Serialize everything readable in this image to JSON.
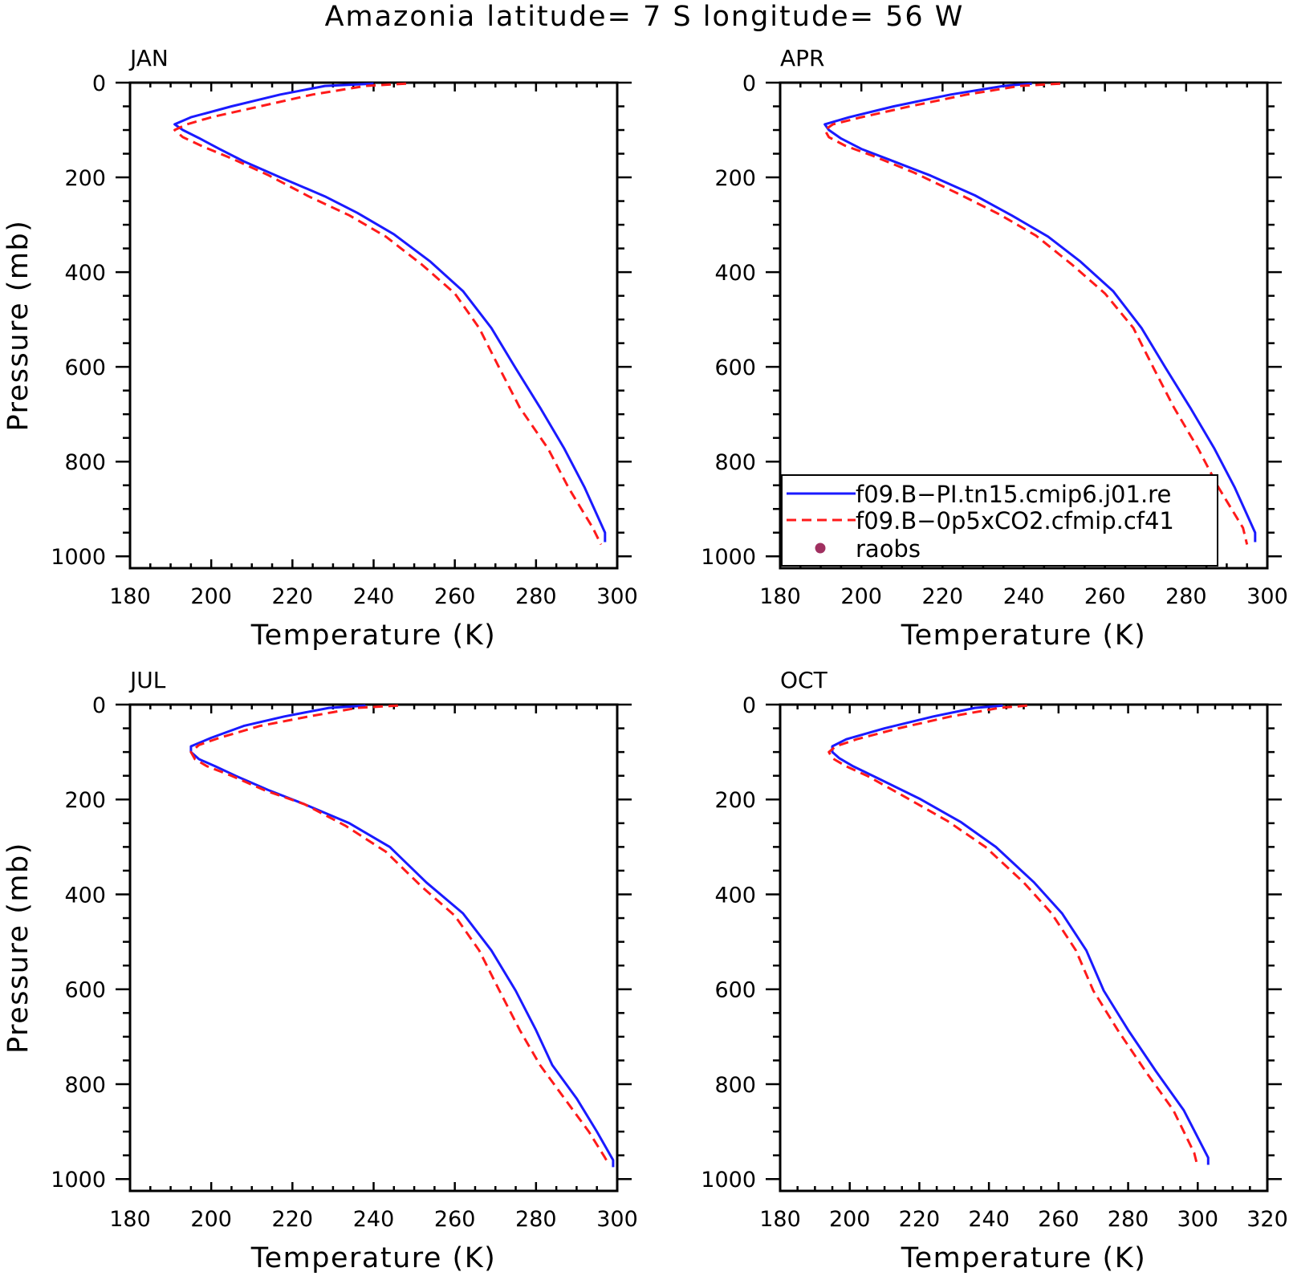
{
  "figure": {
    "title": "Amazonia  latitude= 7 S longitude= 56 W"
  },
  "colors": {
    "series_1": "#1a1aff",
    "series_2": "#ff1a1a",
    "raobs": "#a03060"
  },
  "legend": {
    "panel": "APR",
    "placement": "bottom-left",
    "entries": [
      {
        "label": "f09.B−PI.tn15.cmip6.j01.re",
        "style": "solid",
        "color": "#1a1aff"
      },
      {
        "label": "f09.B−0p5xCO2.cfmip.cf41",
        "style": "dashed",
        "color": "#ff1a1a"
      },
      {
        "label": "raobs",
        "style": "dot",
        "color": "#a03060"
      }
    ]
  },
  "chart_data": [
    {
      "type": "line",
      "title": "JAN",
      "xlabel": "Temperature (K)",
      "ylabel": "Pressure (mb)",
      "xlim": [
        180,
        300
      ],
      "ylim": [
        1025,
        0
      ],
      "xticks": [
        180,
        200,
        220,
        240,
        260,
        280,
        300
      ],
      "yticks": [
        0,
        200,
        400,
        600,
        800,
        1000
      ],
      "series": [
        {
          "name": "f09.B−PI.tn15.cmip6.j01.re",
          "style": "solid",
          "color": "#1a1aff",
          "points": [
            [
              240,
              2
            ],
            [
              228,
              7
            ],
            [
              217,
              25
            ],
            [
              205,
              50
            ],
            [
              195,
              73
            ],
            [
              191,
              88
            ],
            [
              193,
              100
            ],
            [
              197,
              117
            ],
            [
              202,
              140
            ],
            [
              208,
              166
            ],
            [
              217,
              200
            ],
            [
              228,
              240
            ],
            [
              236,
              275
            ],
            [
              245,
              320
            ],
            [
              254,
              378
            ],
            [
              262,
              440
            ],
            [
              269,
              518
            ],
            [
              275,
              603
            ],
            [
              281,
              686
            ],
            [
              287,
              773
            ],
            [
              292,
              855
            ],
            [
              297,
              950
            ],
            [
              297,
              970
            ]
          ]
        },
        {
          "name": "f09.B−0p5xCO2.cfmip.cf41",
          "style": "dashed",
          "color": "#ff1a1a",
          "points": [
            [
              248,
              2
            ],
            [
              238,
              7
            ],
            [
              225,
              25
            ],
            [
              212,
              50
            ],
            [
              200,
              73
            ],
            [
              194,
              88
            ],
            [
              191,
              100
            ],
            [
              193,
              115
            ],
            [
              198,
              135
            ],
            [
              205,
              160
            ],
            [
              214,
              195
            ],
            [
              224,
              240
            ],
            [
              234,
              280
            ],
            [
              243,
              325
            ],
            [
              252,
              385
            ],
            [
              260,
              445
            ],
            [
              266,
              518
            ],
            [
              271,
              603
            ],
            [
              276,
              686
            ],
            [
              283,
              773
            ],
            [
              288,
              855
            ],
            [
              294,
              940
            ],
            [
              296,
              975
            ]
          ]
        }
      ]
    },
    {
      "type": "line",
      "title": "APR",
      "xlabel": "Temperature (K)",
      "ylabel": "",
      "xlim": [
        180,
        300
      ],
      "ylim": [
        1025,
        0
      ],
      "xticks": [
        180,
        200,
        220,
        240,
        260,
        280,
        300
      ],
      "yticks": [
        0,
        200,
        400,
        600,
        800,
        1000
      ],
      "series": [
        {
          "name": "f09.B−PI.tn15.cmip6.j01.re",
          "style": "solid",
          "color": "#1a1aff",
          "points": [
            [
              242,
              2
            ],
            [
              235,
              7
            ],
            [
              222,
              25
            ],
            [
              208,
              50
            ],
            [
              197,
              73
            ],
            [
              191,
              88
            ],
            [
              192,
              100
            ],
            [
              195,
              118
            ],
            [
              200,
              140
            ],
            [
              207,
              163
            ],
            [
              217,
              196
            ],
            [
              228,
              238
            ],
            [
              237,
              280
            ],
            [
              246,
              325
            ],
            [
              254,
              378
            ],
            [
              262,
              440
            ],
            [
              269,
              518
            ],
            [
              275,
              603
            ],
            [
              281,
              686
            ],
            [
              287,
              773
            ],
            [
              292,
              855
            ],
            [
              297,
              950
            ],
            [
              297,
              970
            ]
          ]
        },
        {
          "name": "f09.B−0p5xCO2.cfmip.cf41",
          "style": "dashed",
          "color": "#ff1a1a",
          "points": [
            [
              249,
              2
            ],
            [
              239,
              7
            ],
            [
              226,
              25
            ],
            [
              212,
              50
            ],
            [
              200,
              73
            ],
            [
              193,
              88
            ],
            [
              191,
              100
            ],
            [
              192,
              115
            ],
            [
              196,
              133
            ],
            [
              203,
              155
            ],
            [
              213,
              190
            ],
            [
              224,
              235
            ],
            [
              234,
              278
            ],
            [
              243,
              323
            ],
            [
              252,
              385
            ],
            [
              260,
              445
            ],
            [
              267,
              518
            ],
            [
              272,
              603
            ],
            [
              277,
              686
            ],
            [
              283,
              773
            ],
            [
              288,
              855
            ],
            [
              294,
              940
            ],
            [
              295,
              975
            ]
          ]
        }
      ]
    },
    {
      "type": "line",
      "title": "JUL",
      "xlabel": "Temperature (K)",
      "ylabel": "Pressure (mb)",
      "xlim": [
        180,
        300
      ],
      "ylim": [
        1025,
        0
      ],
      "xticks": [
        180,
        200,
        220,
        240,
        260,
        280,
        300
      ],
      "yticks": [
        0,
        200,
        400,
        600,
        800,
        1000
      ],
      "series": [
        {
          "name": "f09.B−PI.tn15.cmip6.j01.re",
          "style": "solid",
          "color": "#1a1aff",
          "points": [
            [
              238,
              2
            ],
            [
              229,
              7
            ],
            [
              218,
              25
            ],
            [
              208,
              45
            ],
            [
              200,
              70
            ],
            [
              195,
              88
            ],
            [
              195,
              100
            ],
            [
              197,
              115
            ],
            [
              201,
              130
            ],
            [
              206,
              150
            ],
            [
              214,
              180
            ],
            [
              223,
              210
            ],
            [
              234,
              250
            ],
            [
              244,
              300
            ],
            [
              253,
              375
            ],
            [
              262,
              440
            ],
            [
              269,
              518
            ],
            [
              275,
              603
            ],
            [
              280,
              686
            ],
            [
              284,
              760
            ],
            [
              290,
              830
            ],
            [
              295,
              900
            ],
            [
              299,
              960
            ],
            [
              299,
              975
            ]
          ]
        },
        {
          "name": "f09.B−0p5xCO2.cfmip.cf41",
          "style": "dashed",
          "color": "#ff1a1a",
          "points": [
            [
              246,
              2
            ],
            [
              236,
              7
            ],
            [
              224,
              25
            ],
            [
              212,
              45
            ],
            [
              202,
              70
            ],
            [
              197,
              85
            ],
            [
              195,
              100
            ],
            [
              196,
              115
            ],
            [
              199,
              130
            ],
            [
              205,
              150
            ],
            [
              213,
              180
            ],
            [
              223,
              210
            ],
            [
              233,
              255
            ],
            [
              243,
              310
            ],
            [
              252,
              385
            ],
            [
              260,
              445
            ],
            [
              266,
              518
            ],
            [
              271,
              603
            ],
            [
              276,
              686
            ],
            [
              281,
              760
            ],
            [
              287,
              830
            ],
            [
              293,
              900
            ],
            [
              297,
              955
            ],
            [
              298,
              970
            ]
          ]
        }
      ]
    },
    {
      "type": "line",
      "title": "OCT",
      "xlabel": "Temperature (K)",
      "ylabel": "",
      "xlim": [
        180,
        320
      ],
      "ylim": [
        1025,
        0
      ],
      "xticks": [
        180,
        200,
        220,
        240,
        260,
        280,
        300,
        320
      ],
      "yticks": [
        0,
        200,
        400,
        600,
        800,
        1000
      ],
      "series": [
        {
          "name": "f09.B−PI.tn15.cmip6.j01.re",
          "style": "solid",
          "color": "#1a1aff",
          "points": [
            [
              244,
              2
            ],
            [
              236,
              7
            ],
            [
              224,
              25
            ],
            [
              210,
              50
            ],
            [
              199,
              73
            ],
            [
              195,
              88
            ],
            [
              195,
              100
            ],
            [
              197,
              113
            ],
            [
              201,
              130
            ],
            [
              208,
              155
            ],
            [
              220,
              198
            ],
            [
              232,
              248
            ],
            [
              242,
              300
            ],
            [
              253,
              375
            ],
            [
              261,
              440
            ],
            [
              268,
              518
            ],
            [
              273,
              603
            ],
            [
              280,
              686
            ],
            [
              288,
              773
            ],
            [
              296,
              855
            ],
            [
              303,
              955
            ],
            [
              303,
              970
            ]
          ]
        },
        {
          "name": "f09.B−0p5xCO2.cfmip.cf41",
          "style": "dashed",
          "color": "#ff1a1a",
          "points": [
            [
              251,
              2
            ],
            [
              243,
              7
            ],
            [
              229,
              25
            ],
            [
              214,
              50
            ],
            [
              202,
              73
            ],
            [
              196,
              88
            ],
            [
              194,
              100
            ],
            [
              195,
              113
            ],
            [
              199,
              130
            ],
            [
              205,
              150
            ],
            [
              216,
              195
            ],
            [
              228,
              245
            ],
            [
              239,
              300
            ],
            [
              250,
              375
            ],
            [
              258,
              440
            ],
            [
              265,
              518
            ],
            [
              270,
              603
            ],
            [
              277,
              686
            ],
            [
              285,
              773
            ],
            [
              293,
              855
            ],
            [
              299,
              945
            ],
            [
              300,
              975
            ]
          ]
        }
      ]
    }
  ]
}
